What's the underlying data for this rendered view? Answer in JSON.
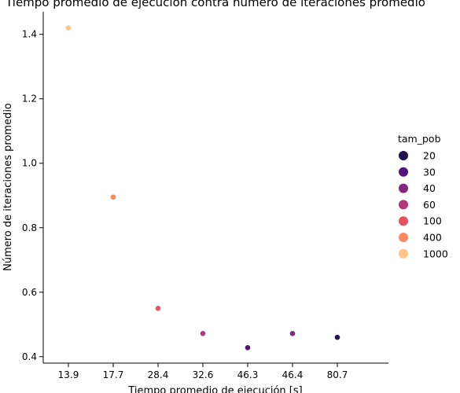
{
  "chart_data": {
    "type": "scatter",
    "title": "Tiempo promedio de ejecución contra número de iteraciones promedio",
    "xlabel": "Tiempo promedio de ejecución [s]",
    "ylabel": "Número de iteraciones promedio",
    "x_scale": "categorical",
    "categories": [
      "13.9",
      "17.7",
      "28.4",
      "32.6",
      "46.3",
      "46.4",
      "80.7"
    ],
    "ylim": [
      0.38,
      1.47
    ],
    "yticks": [
      0.4,
      0.6,
      0.8,
      1.0,
      1.2,
      1.4
    ],
    "ytick_labels": [
      "0.4",
      "0.6",
      "0.8",
      "1.0",
      "1.2",
      "1.4"
    ],
    "grid": false,
    "legend_position": "right",
    "legend_title": "tam_pob",
    "points": [
      {
        "x": "13.9",
        "y": 1.42,
        "tam_pob": "1000"
      },
      {
        "x": "17.7",
        "y": 0.895,
        "tam_pob": "400"
      },
      {
        "x": "28.4",
        "y": 0.55,
        "tam_pob": "100"
      },
      {
        "x": "32.6",
        "y": 0.472,
        "tam_pob": "60"
      },
      {
        "x": "46.3",
        "y": 0.428,
        "tam_pob": "30"
      },
      {
        "x": "46.4",
        "y": 0.472,
        "tam_pob": "40"
      },
      {
        "x": "80.7",
        "y": 0.46,
        "tam_pob": "20"
      }
    ],
    "legend": [
      {
        "label": "20",
        "color": "#221150"
      },
      {
        "label": "30",
        "color": "#51127c"
      },
      {
        "label": "40",
        "color": "#822681"
      },
      {
        "label": "60",
        "color": "#b63679"
      },
      {
        "label": "100",
        "color": "#e65164"
      },
      {
        "label": "400",
        "color": "#fb8861"
      },
      {
        "label": "1000",
        "color": "#fec488"
      }
    ]
  }
}
